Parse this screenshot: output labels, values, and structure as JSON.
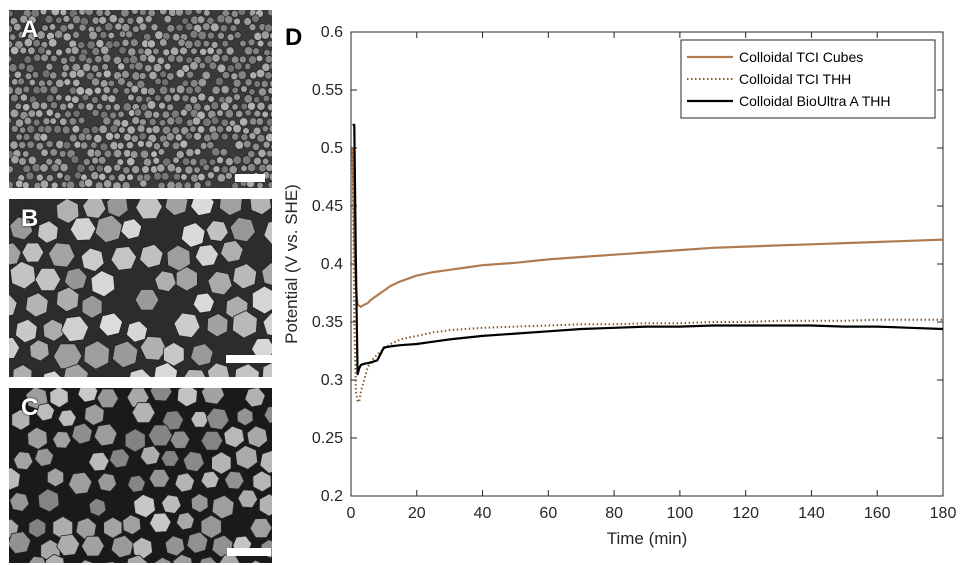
{
  "panels": {
    "a": {
      "label": "A"
    },
    "b": {
      "label": "B"
    },
    "c": {
      "label": "C"
    },
    "d": {
      "label": "D"
    }
  },
  "chart_data": {
    "type": "line",
    "xlabel": "Time (min)",
    "ylabel": "Potential (V vs. SHE)",
    "xlim": [
      0,
      180
    ],
    "ylim": [
      0.2,
      0.6
    ],
    "xticks": [
      0,
      20,
      40,
      60,
      80,
      100,
      120,
      140,
      160,
      180
    ],
    "yticks": [
      0.2,
      0.25,
      0.3,
      0.35,
      0.4,
      0.45,
      0.5,
      0.55,
      0.6
    ],
    "legend_position": "top-right",
    "series": [
      {
        "name": "Colloidal TCI Cubes",
        "color": "#b07b50",
        "style": "solid",
        "x": [
          0.5,
          1,
          1.5,
          2,
          3,
          4,
          5,
          6,
          8,
          10,
          12,
          15,
          20,
          25,
          30,
          35,
          40,
          50,
          60,
          70,
          80,
          90,
          100,
          110,
          120,
          130,
          140,
          150,
          160,
          170,
          180
        ],
        "y": [
          0.5,
          0.42,
          0.38,
          0.365,
          0.363,
          0.365,
          0.366,
          0.369,
          0.373,
          0.377,
          0.381,
          0.385,
          0.39,
          0.393,
          0.395,
          0.397,
          0.399,
          0.401,
          0.404,
          0.406,
          0.408,
          0.41,
          0.412,
          0.414,
          0.415,
          0.416,
          0.417,
          0.418,
          0.419,
          0.42,
          0.421
        ]
      },
      {
        "name": "Colloidal TCI THH",
        "color": "#8b5a2b",
        "style": "dotted",
        "x": [
          0.5,
          1,
          1.5,
          2,
          2.5,
          3,
          4,
          5,
          6,
          8,
          10,
          12,
          15,
          20,
          25,
          30,
          40,
          50,
          60,
          70,
          80,
          90,
          100,
          110,
          120,
          130,
          140,
          150,
          160,
          170,
          180
        ],
        "y": [
          0.5,
          0.35,
          0.29,
          0.282,
          0.281,
          0.29,
          0.3,
          0.31,
          0.316,
          0.322,
          0.327,
          0.331,
          0.335,
          0.338,
          0.341,
          0.343,
          0.345,
          0.346,
          0.347,
          0.348,
          0.348,
          0.349,
          0.349,
          0.35,
          0.35,
          0.351,
          0.351,
          0.351,
          0.352,
          0.352,
          0.352
        ]
      },
      {
        "name": "Colloidal BioUltra A THH",
        "color": "#000000",
        "style": "solid",
        "x": [
          0.5,
          1,
          1.5,
          2,
          2.5,
          3,
          4,
          6,
          8,
          10,
          12,
          15,
          20,
          25,
          30,
          40,
          50,
          60,
          70,
          80,
          90,
          100,
          110,
          120,
          130,
          140,
          150,
          160,
          170,
          180
        ],
        "y": [
          0.52,
          0.52,
          0.4,
          0.305,
          0.31,
          0.313,
          0.314,
          0.315,
          0.317,
          0.328,
          0.329,
          0.33,
          0.331,
          0.333,
          0.335,
          0.338,
          0.34,
          0.342,
          0.344,
          0.345,
          0.346,
          0.346,
          0.347,
          0.347,
          0.347,
          0.347,
          0.346,
          0.346,
          0.345,
          0.344
        ]
      }
    ]
  }
}
